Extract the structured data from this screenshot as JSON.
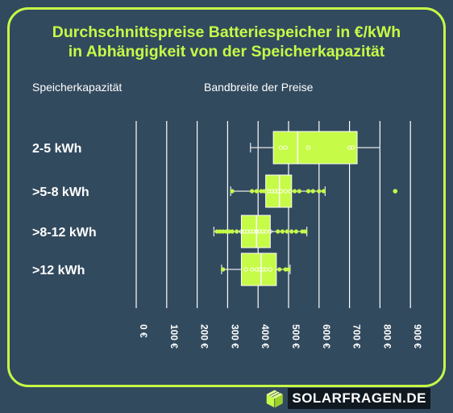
{
  "header": {
    "title_line1": "Durchschnittspreise Batteriespeicher in €/kWh",
    "title_line2": "in Abhängigkeit von der Speicherkapazität",
    "col_left": "Speicherkapazität",
    "col_right": "Bandbreite der Preise"
  },
  "logo": {
    "text": "SOLARFRAGEN.DE",
    "icon": "solar-box-icon"
  },
  "colors": {
    "background": "#324a5e",
    "accent": "#c6fb47",
    "grid": "#ffffff"
  },
  "chart_data": {
    "type": "boxplot",
    "orientation": "horizontal",
    "xlim": [
      0,
      900
    ],
    "xticks": [
      0,
      100,
      200,
      300,
      400,
      500,
      600,
      700,
      800,
      900
    ],
    "xtick_labels": [
      "0 €",
      "100 €",
      "200 €",
      "300 €",
      "400 €",
      "500 €",
      "600 €",
      "700 €",
      "800 €",
      "900 €"
    ],
    "categories": [
      {
        "label": "2-5 kWh",
        "whisker_low": 375,
        "q1": 450,
        "median": 530,
        "q3": 725,
        "whisker_high": 800,
        "points": [
          475,
          490,
          565,
          700,
          710
        ],
        "outliers": []
      },
      {
        "label": ">5-8 kWh",
        "whisker_low": 310,
        "q1": 425,
        "median": 470,
        "q3": 510,
        "whisker_high": 620,
        "points": [
          315,
          380,
          395,
          410,
          420,
          435,
          445,
          455,
          465,
          475,
          490,
          505,
          520,
          535,
          565,
          580,
          600,
          615
        ],
        "outliers": [
          850
        ]
      },
      {
        "label": ">8-12 kWh",
        "whisker_low": 255,
        "q1": 345,
        "median": 395,
        "q3": 440,
        "whisker_high": 560,
        "points": [
          265,
          275,
          285,
          295,
          305,
          315,
          330,
          345,
          355,
          365,
          375,
          385,
          395,
          405,
          415,
          425,
          440,
          465,
          480,
          495,
          510,
          525,
          545,
          555
        ],
        "outliers": []
      },
      {
        "label": ">12 kWh",
        "whisker_low": 280,
        "q1": 345,
        "median": 410,
        "q3": 460,
        "whisker_high": 505,
        "points": [
          285,
          360,
          380,
          395,
          405,
          415,
          425,
          440,
          470,
          490,
          500
        ],
        "outliers": []
      }
    ]
  }
}
